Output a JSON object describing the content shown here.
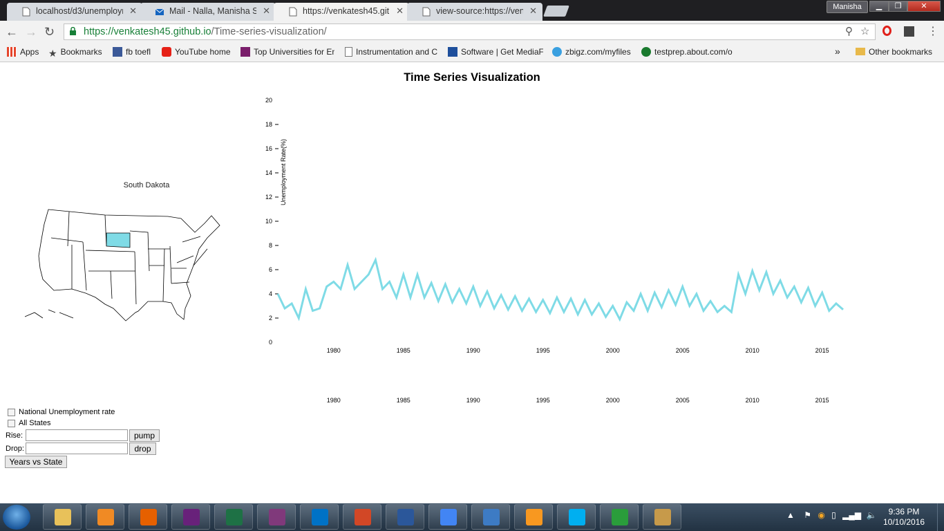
{
  "browser": {
    "tabs": [
      {
        "title": "localhost/d3/unemployme",
        "icon": "document-icon",
        "active": false
      },
      {
        "title": "Mail - Nalla, Manisha Sid",
        "icon": "mail-icon",
        "active": false
      },
      {
        "title": "https://venkatesh45.githu",
        "icon": "document-icon",
        "active": true
      },
      {
        "title": "view-source:https://venk",
        "icon": "document-icon",
        "active": false
      }
    ],
    "user": "Manisha",
    "url_host": "https://venkatesh45.github.io",
    "url_path": "/Time-series-visualization/",
    "bookmarks": [
      {
        "label": "Apps",
        "icon": "apps-grid-icon"
      },
      {
        "label": "Bookmarks",
        "icon": "star-icon"
      },
      {
        "label": "fb toefl",
        "icon": "facebook-icon"
      },
      {
        "label": "YouTube home",
        "icon": "youtube-icon"
      },
      {
        "label": "Top Universities for En",
        "icon": "the-icon"
      },
      {
        "label": "Instrumentation and C",
        "icon": "document-icon"
      },
      {
        "label": "Software | Get MediaF",
        "icon": "mediafire-icon"
      },
      {
        "label": "zbigz.com/myfiles",
        "icon": "cloud-icon"
      },
      {
        "label": "testprep.about.com/o",
        "icon": "about-icon"
      }
    ],
    "overflow": "»",
    "other_bookmarks": "Other bookmarks"
  },
  "page": {
    "title": "Time Series Visualization",
    "selected_state": "South Dakota",
    "highlight_color": "#7fdbe6",
    "controls": {
      "national_label": "National Unemployment rate",
      "all_states_label": "All States",
      "rise_label": "Rise:",
      "drop_label": "Drop:",
      "pump_button": "pump",
      "drop_button": "drop",
      "years_vs_state_button": "Years vs State"
    }
  },
  "chart_data": {
    "type": "line",
    "ylabel": "Unemployment Rate(%)",
    "ylim": [
      0,
      20
    ],
    "yticks": [
      0,
      2,
      4,
      6,
      8,
      10,
      12,
      14,
      16,
      18,
      20
    ],
    "xlim": [
      1976.0,
      2016.6
    ],
    "xticks": [
      1980,
      1985,
      1990,
      1995,
      2000,
      2005,
      2010,
      2015
    ],
    "series": [
      {
        "color": "#7fdbe6",
        "x": [
          1976.0,
          1976.5,
          1977.0,
          1977.5,
          1978.0,
          1978.5,
          1979.0,
          1979.5,
          1980.0,
          1980.5,
          1981.0,
          1981.5,
          1982.0,
          1982.5,
          1983.0,
          1983.5,
          1984.0,
          1984.5,
          1985.0,
          1985.5,
          1986.0,
          1986.5,
          1987.0,
          1987.5,
          1988.0,
          1988.5,
          1989.0,
          1989.5,
          1990.0,
          1990.5,
          1991.0,
          1991.5,
          1992.0,
          1992.5,
          1993.0,
          1993.5,
          1994.0,
          1994.5,
          1995.0,
          1995.5,
          1996.0,
          1996.5,
          1997.0,
          1997.5,
          1998.0,
          1998.5,
          1999.0,
          1999.5,
          2000.0,
          2000.5,
          2001.0,
          2001.5,
          2002.0,
          2002.5,
          2003.0,
          2003.5,
          2004.0,
          2004.5,
          2005.0,
          2005.5,
          2006.0,
          2006.5,
          2007.0,
          2007.5,
          2008.0,
          2008.5,
          2009.0,
          2009.5,
          2010.0,
          2010.5,
          2011.0,
          2011.5,
          2012.0,
          2012.5,
          2013.0,
          2013.5,
          2014.0,
          2014.5,
          2015.0,
          2015.5,
          2016.0,
          2016.5
        ],
        "y": [
          4.0,
          2.8,
          3.2,
          2.0,
          4.4,
          2.6,
          2.8,
          4.6,
          5.0,
          4.4,
          6.4,
          4.4,
          5.0,
          5.6,
          6.8,
          4.4,
          5.0,
          3.7,
          5.6,
          3.7,
          5.6,
          3.7,
          4.9,
          3.4,
          4.8,
          3.3,
          4.4,
          3.2,
          4.6,
          3.0,
          4.2,
          2.8,
          3.9,
          2.7,
          3.8,
          2.6,
          3.6,
          2.5,
          3.5,
          2.4,
          3.7,
          2.5,
          3.6,
          2.3,
          3.5,
          2.3,
          3.2,
          2.1,
          3.0,
          1.9,
          3.3,
          2.6,
          4.0,
          2.6,
          4.1,
          2.9,
          4.3,
          3.1,
          4.6,
          3.0,
          4.0,
          2.6,
          3.4,
          2.5,
          3.0,
          2.5,
          5.6,
          4.0,
          5.9,
          4.3,
          5.8,
          4.0,
          5.1,
          3.7,
          4.6,
          3.3,
          4.5,
          3.0,
          4.1,
          2.6,
          3.2,
          2.7
        ]
      }
    ],
    "grid": false
  },
  "taskbar": {
    "apps": [
      "file-explorer-icon",
      "media-player-icon",
      "firefox-icon",
      "visual-studio-icon",
      "excel-icon",
      "onenote-icon",
      "outlook-icon",
      "powerpoint-icon",
      "word-icon",
      "chrome-icon",
      "wordpad-icon",
      "sublime-icon",
      "skype-icon",
      "shield-icon",
      "paint-icon"
    ],
    "time": "9:36 PM",
    "date": "10/10/2016"
  }
}
